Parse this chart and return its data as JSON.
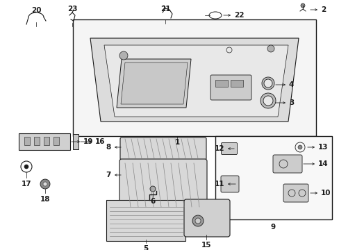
{
  "bg_color": "#ffffff",
  "line_color": "#1a1a1a",
  "fig_width": 4.89,
  "fig_height": 3.6,
  "dpi": 100,
  "box_fill": "#f5f5f5",
  "headliner_fill": "#e8e8e8",
  "part_fill": "#e0e0e0",
  "hatch_color": "#888888"
}
